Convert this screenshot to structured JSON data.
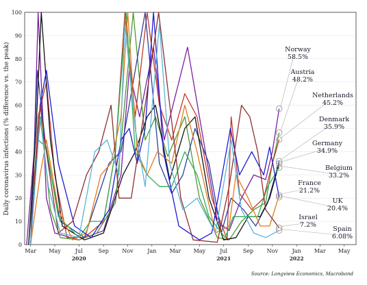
{
  "chart_data": {
    "type": "line",
    "ylabel": "Daily coronavirus infections (% difference vs. the peak)",
    "source": "Source: Longview Economics, Macrobond",
    "ylim": [
      0,
      100
    ],
    "yticks": [
      "0",
      "10",
      "20",
      "30",
      "40",
      "50",
      "60",
      "70",
      "80",
      "90",
      "100"
    ],
    "xlim": [
      "2020-02-15",
      "2022-05-31"
    ],
    "xticks": [
      {
        "date": "2020-03-01",
        "label": "Mar"
      },
      {
        "date": "2020-05-01",
        "label": "May"
      },
      {
        "date": "2020-07-01",
        "label": "Jul"
      },
      {
        "date": "2020-09-01",
        "label": "Sep"
      },
      {
        "date": "2020-11-01",
        "label": "Nov"
      },
      {
        "date": "2021-01-01",
        "label": "Jan"
      },
      {
        "date": "2021-03-01",
        "label": "Mar"
      },
      {
        "date": "2021-05-01",
        "label": "May"
      },
      {
        "date": "2021-07-01",
        "label": "Jul"
      },
      {
        "date": "2021-09-01",
        "label": "Sep"
      },
      {
        "date": "2021-11-01",
        "label": "Nov"
      },
      {
        "date": "2022-01-01",
        "label": "Jan"
      },
      {
        "date": "2022-03-01",
        "label": "Mar"
      },
      {
        "date": "2022-05-01",
        "label": "May"
      }
    ],
    "years": [
      {
        "date": "2020-07-01",
        "label": "2020"
      },
      {
        "date": "2021-07-01",
        "label": "2021"
      },
      {
        "date": "2022-01-01",
        "label": "2022"
      }
    ],
    "series": [
      {
        "name": "Norway",
        "value_label": "58.5%",
        "color": "#7a1f9e",
        "end": 58.5,
        "points": [
          [
            "2020-02-20",
            0
          ],
          [
            "2020-03-10",
            40
          ],
          [
            "2020-03-20",
            100
          ],
          [
            "2020-04-10",
            20
          ],
          [
            "2020-05-01",
            5
          ],
          [
            "2020-07-01",
            2
          ],
          [
            "2020-09-01",
            6
          ],
          [
            "2020-10-15",
            30
          ],
          [
            "2020-11-05",
            75
          ],
          [
            "2020-12-01",
            55
          ],
          [
            "2021-01-05",
            85
          ],
          [
            "2021-02-01",
            45
          ],
          [
            "2021-03-10",
            70
          ],
          [
            "2021-04-01",
            85
          ],
          [
            "2021-05-01",
            55
          ],
          [
            "2021-06-15",
            10
          ],
          [
            "2021-07-15",
            6
          ],
          [
            "2021-08-15",
            20
          ],
          [
            "2021-09-15",
            30
          ],
          [
            "2021-10-15",
            28
          ],
          [
            "2021-11-01",
            40
          ],
          [
            "2021-11-18",
            58.5
          ]
        ]
      },
      {
        "name": "Austria",
        "value_label": "48.2%",
        "color": "#4a9a30",
        "end": 48.2,
        "points": [
          [
            "2020-02-25",
            0
          ],
          [
            "2020-03-10",
            30
          ],
          [
            "2020-03-27",
            55
          ],
          [
            "2020-04-20",
            15
          ],
          [
            "2020-05-15",
            3
          ],
          [
            "2020-07-01",
            2
          ],
          [
            "2020-08-15",
            5
          ],
          [
            "2020-10-01",
            18
          ],
          [
            "2020-11-01",
            75
          ],
          [
            "2020-11-15",
            100
          ],
          [
            "2020-12-15",
            45
          ],
          [
            "2021-01-10",
            55
          ],
          [
            "2021-02-10",
            38
          ],
          [
            "2021-03-25",
            55
          ],
          [
            "2021-05-01",
            20
          ],
          [
            "2021-06-15",
            3
          ],
          [
            "2021-07-15",
            2
          ],
          [
            "2021-08-15",
            10
          ],
          [
            "2021-09-15",
            15
          ],
          [
            "2021-10-15",
            18
          ],
          [
            "2021-11-01",
            35
          ],
          [
            "2021-11-18",
            48.2
          ]
        ]
      },
      {
        "name": "Netherlands",
        "value_label": "45.2%",
        "color": "#c0392b",
        "end": 45.2,
        "points": [
          [
            "2020-03-01",
            0
          ],
          [
            "2020-03-20",
            55
          ],
          [
            "2020-04-10",
            70
          ],
          [
            "2020-05-01",
            30
          ],
          [
            "2020-06-01",
            3
          ],
          [
            "2020-07-15",
            3
          ],
          [
            "2020-09-01",
            10
          ],
          [
            "2020-10-01",
            40
          ],
          [
            "2020-10-25",
            100
          ],
          [
            "2020-11-20",
            55
          ],
          [
            "2020-12-20",
            100
          ],
          [
            "2021-01-20",
            60
          ],
          [
            "2021-02-20",
            45
          ],
          [
            "2021-03-25",
            65
          ],
          [
            "2021-04-25",
            55
          ],
          [
            "2021-06-01",
            20
          ],
          [
            "2021-07-10",
            2
          ],
          [
            "2021-07-20",
            55
          ],
          [
            "2021-08-10",
            22
          ],
          [
            "2021-09-10",
            15
          ],
          [
            "2021-10-10",
            20
          ],
          [
            "2021-11-01",
            35
          ],
          [
            "2021-11-18",
            45.2
          ]
        ]
      },
      {
        "name": "Denmark",
        "value_label": "35.9%",
        "color": "#2c3e9e",
        "end": 35.9,
        "points": [
          [
            "2020-03-01",
            0
          ],
          [
            "2020-03-18",
            75
          ],
          [
            "2020-04-10",
            40
          ],
          [
            "2020-05-15",
            10
          ],
          [
            "2020-07-15",
            3
          ],
          [
            "2020-09-15",
            35
          ],
          [
            "2020-10-15",
            40
          ],
          [
            "2020-11-15",
            70
          ],
          [
            "2020-12-15",
            100
          ],
          [
            "2021-01-20",
            35
          ],
          [
            "2021-02-20",
            22
          ],
          [
            "2021-03-20",
            30
          ],
          [
            "2021-04-20",
            50
          ],
          [
            "2021-05-25",
            35
          ],
          [
            "2021-06-25",
            5
          ],
          [
            "2021-07-20",
            20
          ],
          [
            "2021-08-20",
            15
          ],
          [
            "2021-09-20",
            8
          ],
          [
            "2021-10-20",
            18
          ],
          [
            "2021-11-18",
            35.9
          ]
        ]
      },
      {
        "name": "Germany",
        "value_label": "34.9%",
        "color": "#111111",
        "end": 34.9,
        "points": [
          [
            "2020-02-25",
            0
          ],
          [
            "2020-03-15",
            50
          ],
          [
            "2020-03-28",
            100
          ],
          [
            "2020-04-20",
            45
          ],
          [
            "2020-05-20",
            8
          ],
          [
            "2020-07-15",
            2
          ],
          [
            "2020-09-01",
            5
          ],
          [
            "2020-10-20",
            30
          ],
          [
            "2020-11-20",
            40
          ],
          [
            "2020-12-20",
            55
          ],
          [
            "2021-01-10",
            60
          ],
          [
            "2021-02-15",
            28
          ],
          [
            "2021-03-25",
            50
          ],
          [
            "2021-04-20",
            55
          ],
          [
            "2021-05-25",
            20
          ],
          [
            "2021-07-01",
            2
          ],
          [
            "2021-08-01",
            3
          ],
          [
            "2021-09-01",
            12
          ],
          [
            "2021-10-01",
            12
          ],
          [
            "2021-10-25",
            20
          ],
          [
            "2021-11-18",
            34.9
          ]
        ]
      },
      {
        "name": "Belgium",
        "value_label": "33.2%",
        "color": "#2fae50",
        "end": 33.2,
        "points": [
          [
            "2020-03-01",
            0
          ],
          [
            "2020-03-20",
            45
          ],
          [
            "2020-04-10",
            42
          ],
          [
            "2020-05-10",
            12
          ],
          [
            "2020-07-01",
            3
          ],
          [
            "2020-07-30",
            10
          ],
          [
            "2020-09-01",
            10
          ],
          [
            "2020-10-01",
            40
          ],
          [
            "2020-10-28",
            100
          ],
          [
            "2020-11-20",
            40
          ],
          [
            "2020-12-20",
            30
          ],
          [
            "2021-01-20",
            25
          ],
          [
            "2021-02-20",
            25
          ],
          [
            "2021-03-25",
            40
          ],
          [
            "2021-04-25",
            30
          ],
          [
            "2021-05-25",
            12
          ],
          [
            "2021-07-05",
            3
          ],
          [
            "2021-07-25",
            12
          ],
          [
            "2021-08-25",
            12
          ],
          [
            "2021-09-25",
            12
          ],
          [
            "2021-10-20",
            25
          ],
          [
            "2021-11-18",
            33.2
          ]
        ]
      },
      {
        "name": "France",
        "value_label": "21.2%",
        "color": "#e07b1a",
        "end": 21.2,
        "points": [
          [
            "2020-03-01",
            0
          ],
          [
            "2020-03-25",
            30
          ],
          [
            "2020-04-10",
            45
          ],
          [
            "2020-05-10",
            15
          ],
          [
            "2020-06-15",
            2
          ],
          [
            "2020-07-20",
            5
          ],
          [
            "2020-08-25",
            30
          ],
          [
            "2020-09-20",
            35
          ],
          [
            "2020-10-15",
            55
          ],
          [
            "2020-11-01",
            100
          ],
          [
            "2020-11-25",
            40
          ],
          [
            "2020-12-20",
            30
          ],
          [
            "2021-01-15",
            40
          ],
          [
            "2021-02-20",
            35
          ],
          [
            "2021-03-25",
            60
          ],
          [
            "2021-04-25",
            40
          ],
          [
            "2021-06-10",
            5
          ],
          [
            "2021-07-15",
            8
          ],
          [
            "2021-08-01",
            30
          ],
          [
            "2021-09-01",
            20
          ],
          [
            "2021-10-01",
            8
          ],
          [
            "2021-10-25",
            8
          ],
          [
            "2021-11-18",
            21.2
          ]
        ]
      },
      {
        "name": "UK",
        "value_label": "20.4%",
        "color": "#1a1ad6",
        "end": 20.4,
        "points": [
          [
            "2020-03-01",
            0
          ],
          [
            "2020-03-25",
            60
          ],
          [
            "2020-04-10",
            75
          ],
          [
            "2020-05-10",
            35
          ],
          [
            "2020-06-20",
            8
          ],
          [
            "2020-08-01",
            3
          ],
          [
            "2020-09-15",
            15
          ],
          [
            "2020-10-15",
            45
          ],
          [
            "2020-11-05",
            50
          ],
          [
            "2020-11-25",
            35
          ],
          [
            "2020-12-15",
            50
          ],
          [
            "2021-01-05",
            100
          ],
          [
            "2021-01-30",
            40
          ],
          [
            "2021-03-10",
            8
          ],
          [
            "2021-05-01",
            2
          ],
          [
            "2021-06-01",
            5
          ],
          [
            "2021-07-18",
            50
          ],
          [
            "2021-08-10",
            30
          ],
          [
            "2021-09-10",
            40
          ],
          [
            "2021-10-10",
            30
          ],
          [
            "2021-10-25",
            42
          ],
          [
            "2021-11-18",
            20.4
          ]
        ]
      },
      {
        "name": "Israel",
        "value_label": "7.2%",
        "color": "#8b2f2f",
        "end": 7.2,
        "points": [
          [
            "2020-03-01",
            0
          ],
          [
            "2020-03-25",
            60
          ],
          [
            "2020-04-10",
            40
          ],
          [
            "2020-05-10",
            5
          ],
          [
            "2020-06-15",
            10
          ],
          [
            "2020-07-20",
            30
          ],
          [
            "2020-08-20",
            40
          ],
          [
            "2020-09-20",
            60
          ],
          [
            "2020-10-10",
            20
          ],
          [
            "2020-11-10",
            20
          ],
          [
            "2020-12-15",
            60
          ],
          [
            "2021-01-18",
            100
          ],
          [
            "2021-02-15",
            60
          ],
          [
            "2021-03-15",
            20
          ],
          [
            "2021-04-15",
            2
          ],
          [
            "2021-06-15",
            1
          ],
          [
            "2021-07-15",
            25
          ],
          [
            "2021-08-15",
            60
          ],
          [
            "2021-09-05",
            55
          ],
          [
            "2021-09-25",
            40
          ],
          [
            "2021-10-15",
            15
          ],
          [
            "2021-11-18",
            7.2
          ]
        ]
      },
      {
        "name": "Spain",
        "value_label": "6.08%",
        "color": "#5ab4d8",
        "end": 6.08,
        "points": [
          [
            "2020-03-01",
            0
          ],
          [
            "2020-03-25",
            55
          ],
          [
            "2020-04-15",
            25
          ],
          [
            "2020-05-15",
            5
          ],
          [
            "2020-07-01",
            3
          ],
          [
            "2020-08-10",
            40
          ],
          [
            "2020-09-10",
            45
          ],
          [
            "2020-10-10",
            30
          ],
          [
            "2020-10-25",
            95
          ],
          [
            "2020-11-20",
            50
          ],
          [
            "2020-12-15",
            25
          ],
          [
            "2021-01-20",
            95
          ],
          [
            "2021-02-15",
            35
          ],
          [
            "2021-03-20",
            15
          ],
          [
            "2021-04-25",
            20
          ],
          [
            "2021-06-10",
            5
          ],
          [
            "2021-07-20",
            45
          ],
          [
            "2021-08-15",
            15
          ],
          [
            "2021-09-15",
            5
          ],
          [
            "2021-10-15",
            3
          ],
          [
            "2021-11-18",
            6.08
          ]
        ]
      }
    ]
  }
}
